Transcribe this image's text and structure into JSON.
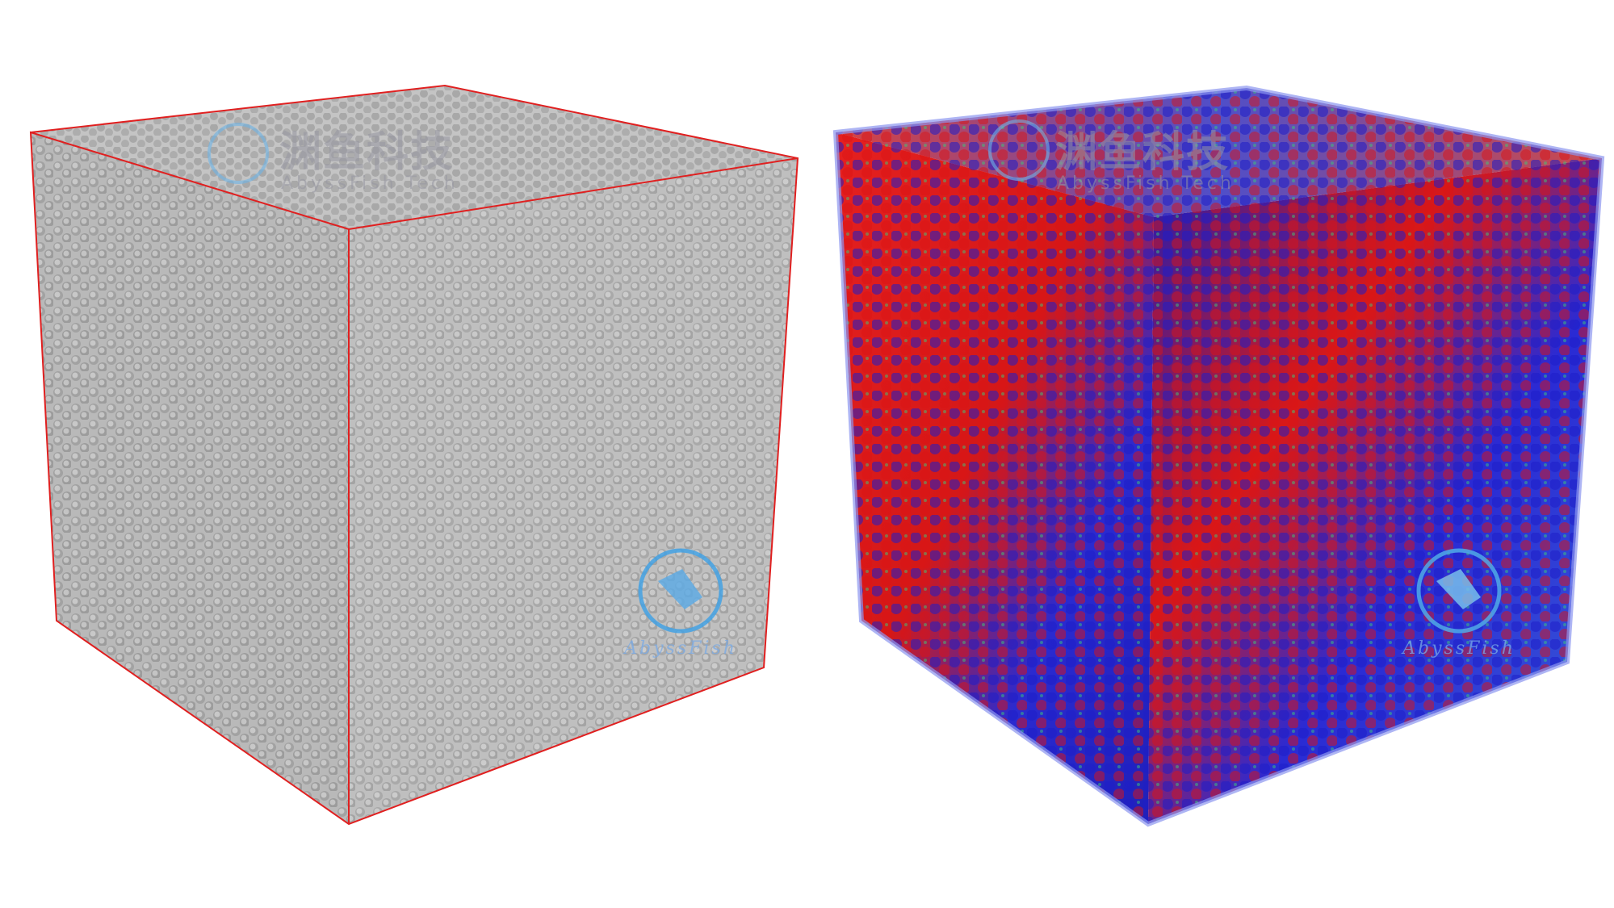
{
  "panels": [
    {
      "watermark_title": "渊鱼科技",
      "watermark_subtitle": "AbyssFish Tech",
      "logo_text": "AbyssFish"
    },
    {
      "watermark_title": "渊鱼科技",
      "watermark_subtitle": "AbyssFish Tech",
      "logo_text": "AbyssFish"
    }
  ]
}
